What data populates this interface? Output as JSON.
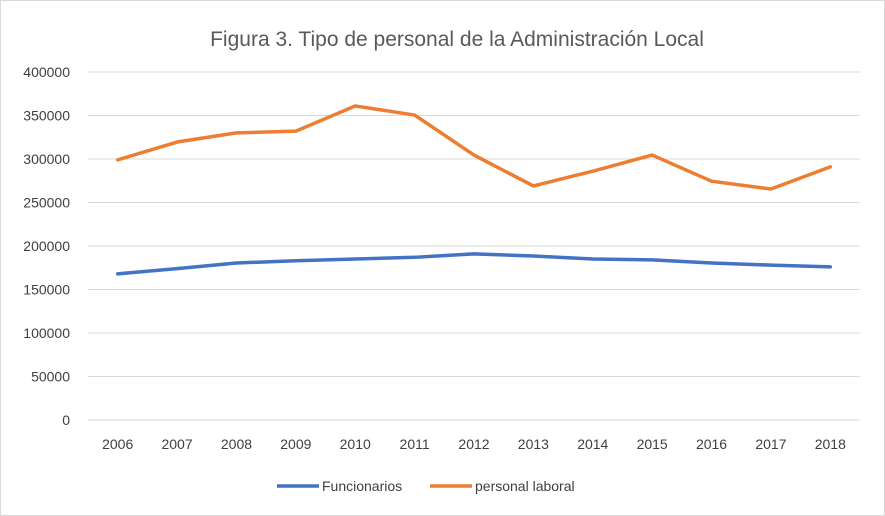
{
  "chart_data": {
    "type": "line",
    "title": "Figura 3. Tipo de personal de la Administración Local",
    "xlabel": "",
    "ylabel": "",
    "x": [
      "2006",
      "2007",
      "2008",
      "2009",
      "2010",
      "2011",
      "2012",
      "2013",
      "2014",
      "2015",
      "2016",
      "2017",
      "2018"
    ],
    "ylim": [
      0,
      400000
    ],
    "yticks": [
      "0",
      "50000",
      "100000",
      "150000",
      "200000",
      "250000",
      "300000",
      "350000",
      "400000"
    ],
    "grid": true,
    "legend_position": "bottom",
    "series": [
      {
        "name": "Funcionarios",
        "color": "#4472c4",
        "values": [
          168000,
          174000,
          180500,
          183000,
          185000,
          187000,
          191000,
          188500,
          185000,
          184000,
          180500,
          178000,
          176000
        ]
      },
      {
        "name": "personal laboral",
        "color": "#ed7d31",
        "values": [
          299000,
          319500,
          330000,
          332000,
          361000,
          350500,
          304500,
          269000,
          286000,
          304500,
          274500,
          265500,
          291000
        ]
      }
    ]
  }
}
